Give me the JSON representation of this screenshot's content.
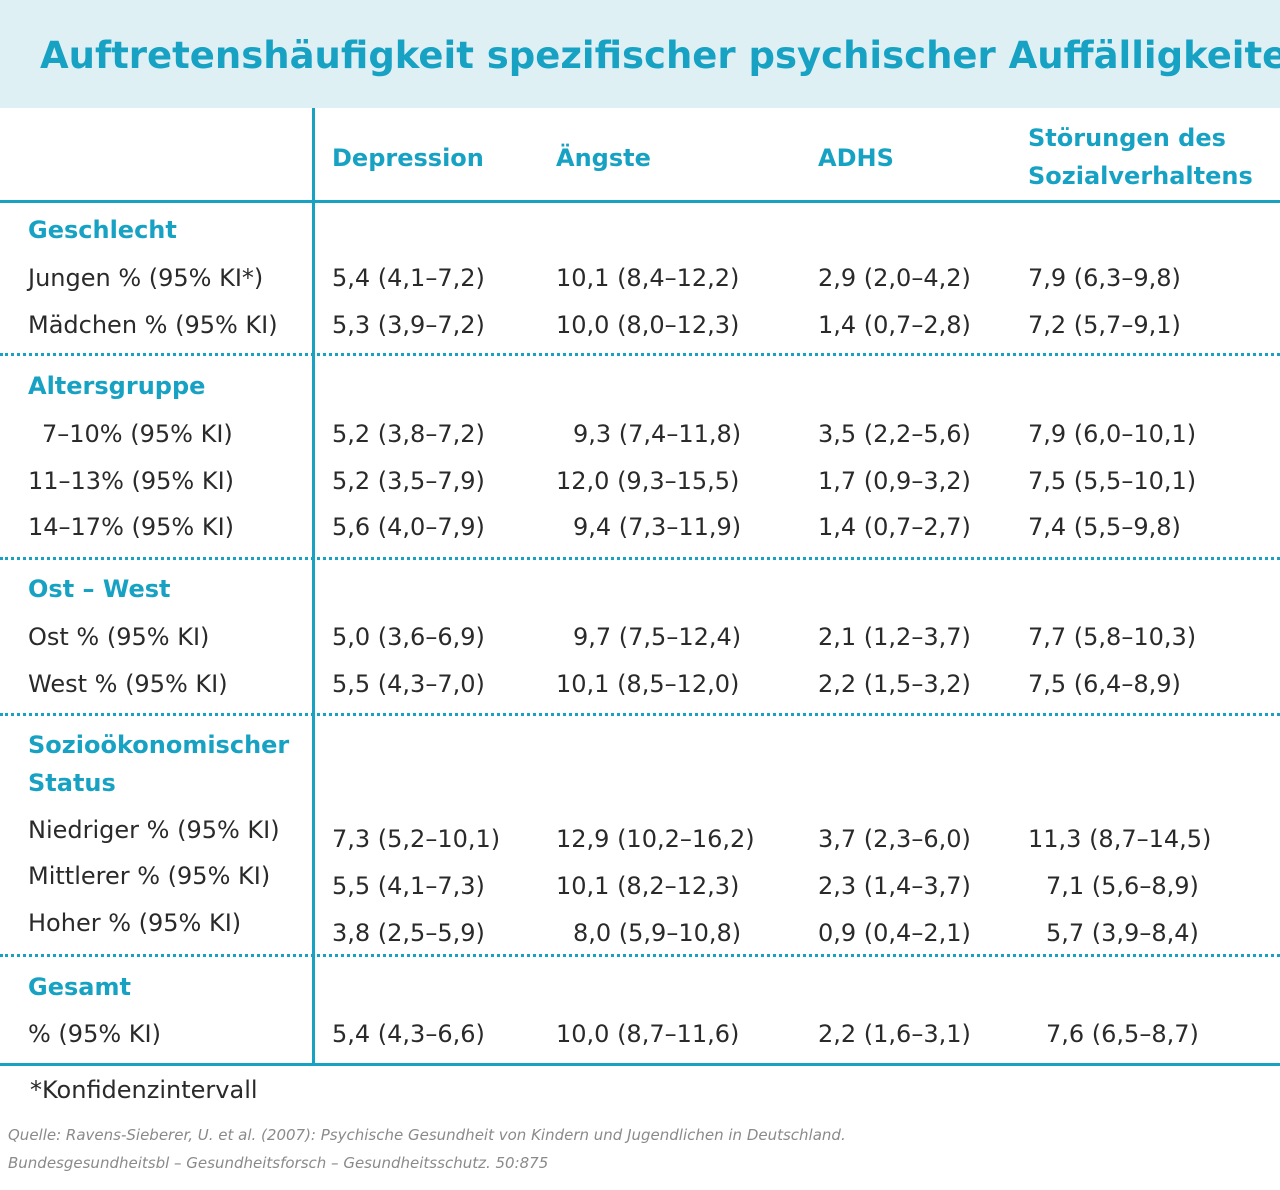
{
  "title": "Auftretenshäufigkeit spezifischer psychischer Auffälligkeiten",
  "columns": [
    {
      "lines": [
        "Depression"
      ]
    },
    {
      "lines": [
        "Ängste"
      ]
    },
    {
      "lines": [
        "ADHS"
      ]
    },
    {
      "lines": [
        "Störungen des",
        "Sozialverhaltens"
      ]
    }
  ],
  "sections": [
    {
      "name_lines": [
        "Geschlecht"
      ],
      "rows": [
        {
          "label": "Jungen % (95% KI*)",
          "values": [
            "5,4 (4,1–7,2)",
            "10,1 (8,4–12,2)",
            "2,9 (2,0–4,2)",
            "7,9 (6,3–9,8)"
          ]
        },
        {
          "label": "Mädchen % (95% KI)",
          "values": [
            "5,3 (3,9–7,2)",
            "10,0 (8,0–12,3)",
            "1,4 (0,7–2,8)",
            "7,2 (5,7–9,1)"
          ]
        }
      ]
    },
    {
      "name_lines": [
        "Altersgruppe"
      ],
      "rows": [
        {
          "label": "7–10% (95% KI)",
          "values": [
            "5,2 (3,8–7,2)",
            "9,3 (7,4–11,8)",
            "3,5 (2,2–5,6)",
            "7,9 (6,0–10,1)"
          ]
        },
        {
          "label": "11–13% (95% KI)",
          "values": [
            "5,2 (3,5–7,9)",
            "12,0 (9,3–15,5)",
            "1,7 (0,9–3,2)",
            "7,5 (5,5–10,1)"
          ]
        },
        {
          "label": "14–17% (95% KI)",
          "values": [
            "5,6 (4,0–7,9)",
            "9,4 (7,3–11,9)",
            "1,4 (0,7–2,7)",
            "7,4 (5,5–9,8)"
          ]
        }
      ]
    },
    {
      "name_lines": [
        "Ost – West"
      ],
      "rows": [
        {
          "label": "Ost % (95% KI)",
          "values": [
            "5,0 (3,6–6,9)",
            "9,7 (7,5–12,4)",
            "2,1 (1,2–3,7)",
            "7,7 (5,8–10,3)"
          ]
        },
        {
          "label": "West % (95% KI)",
          "values": [
            "5,5 (4,3–7,0)",
            "10,1 (8,5–12,0)",
            "2,2 (1,5–3,2)",
            "7,5 (6,4–8,9)"
          ]
        }
      ]
    },
    {
      "name_lines": [
        "Sozioökonomischer",
        "Status"
      ],
      "rows": [
        {
          "label": "Niedriger % (95% KI)",
          "values": [
            "7,3 (5,2–10,1)",
            "12,9 (10,2–16,2)",
            "3,7 (2,3–6,0)",
            "11,3 (8,7–14,5)"
          ]
        },
        {
          "label": "Mittlerer % (95% KI)",
          "values": [
            "5,5 (4,1–7,3)",
            "10,1 (8,2–12,3)",
            "2,3 (1,4–3,7)",
            "7,1 (5,6–8,9)"
          ]
        },
        {
          "label": "Hoher % (95% KI)",
          "values": [
            "3,8 (2,5–5,9)",
            "8,0 (5,9–10,8)",
            "0,9 (0,4–2,1)",
            "5,7 (3,9–8,4)"
          ]
        }
      ]
    },
    {
      "name_lines": [
        "Gesamt"
      ],
      "rows": [
        {
          "label": "% (95% KI)",
          "values": [
            "5,4 (4,3–6,6)",
            "10,0 (8,7–11,6)",
            "2,2 (1,6–3,1)",
            "7,6 (6,5–8,7)"
          ]
        }
      ]
    }
  ],
  "footnote": "*Konfidenzintervall",
  "source_lines": [
    "Quelle: Ravens-Sieberer, U. et al. (2007): Psychische Gesundheit von Kindern und Jugendlichen in Deutschland.",
    "Bundesgesundheitsbl – Gesundheitsforsch – Gesundheitsschutz. 50:875"
  ],
  "colors": {
    "accent": "#17a2c4",
    "title_bg": "#dff0f5",
    "text": "#2a2a2a",
    "source": "#8a8a8a"
  }
}
